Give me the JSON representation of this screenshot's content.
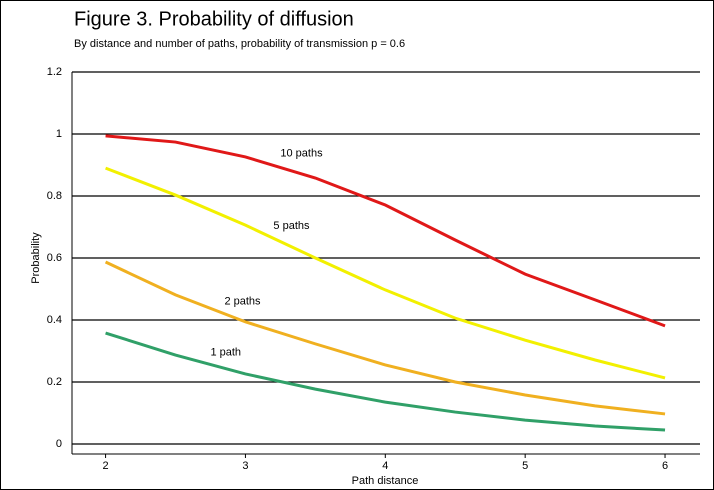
{
  "chart_data": {
    "type": "line",
    "title": "Figure 3.  Probability of diffusion",
    "subtitle": "By distance and number of paths, probability of transmission p = 0.6",
    "x_label": "Path distance",
    "y_label": "Probability",
    "x": [
      2,
      2.5,
      3,
      3.5,
      4,
      4.5,
      5,
      5.5,
      6
    ],
    "series": [
      {
        "name": "10 paths",
        "color": "#e01818",
        "values": [
          0.994,
          0.974,
          0.926,
          0.858,
          0.771,
          0.658,
          0.548,
          0.465,
          0.381
        ]
      },
      {
        "name": "5 paths",
        "color": "#f2f000",
        "values": [
          0.89,
          0.803,
          0.706,
          0.6,
          0.497,
          0.406,
          0.335,
          0.271,
          0.213
        ]
      },
      {
        "name": "2 paths",
        "color": "#f0b020",
        "values": [
          0.587,
          0.481,
          0.394,
          0.323,
          0.255,
          0.2,
          0.158,
          0.123,
          0.097
        ]
      },
      {
        "name": "1 path",
        "color": "#30a068",
        "values": [
          0.358,
          0.287,
          0.226,
          0.177,
          0.135,
          0.103,
          0.077,
          0.058,
          0.045
        ]
      }
    ],
    "xlim": [
      1.76,
      6.25
    ],
    "xticks": [
      2,
      3,
      4,
      5,
      6
    ],
    "ylim": [
      0,
      1.2
    ],
    "yticks": [
      0,
      0.2,
      0.4,
      0.6,
      0.8,
      1.0,
      1.2
    ],
    "grid": true
  }
}
